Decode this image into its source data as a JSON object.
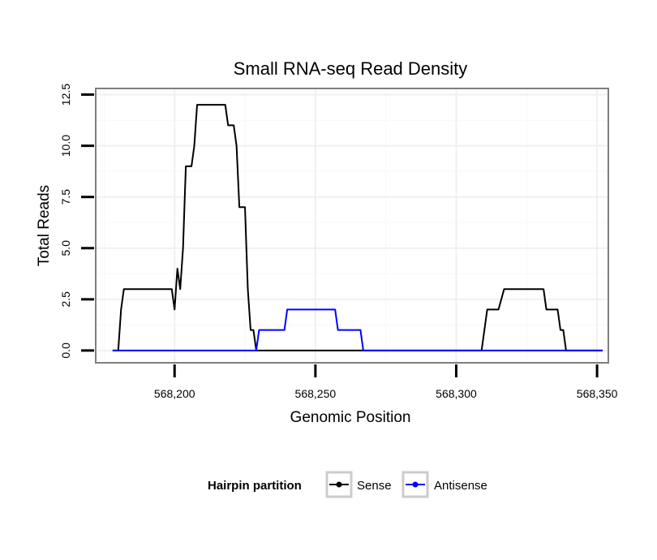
{
  "chart_data": {
    "type": "line",
    "title": "Small RNA-seq Read Density",
    "xlabel": "Genomic Position",
    "ylabel": "Total Reads",
    "xlim": [
      568172,
      568354
    ],
    "ylim": [
      -0.6,
      12.8
    ],
    "x_ticks": [
      568200,
      568250,
      568300,
      568350
    ],
    "x_tick_labels": [
      "568,200",
      "568,250",
      "568,300",
      "568,350"
    ],
    "y_ticks": [
      0,
      2.5,
      5,
      7.5,
      10,
      12.5
    ],
    "y_tick_labels": [
      "0.0",
      "2.5",
      "5.0",
      "7.5",
      "10.0",
      "12.5"
    ],
    "grid": true,
    "legend_title": "Hairpin partition",
    "legend_position": "bottom",
    "series": [
      {
        "name": "Sense",
        "color": "#000000",
        "points": [
          [
            568178,
            0
          ],
          [
            568180,
            0
          ],
          [
            568181,
            2
          ],
          [
            568182,
            3
          ],
          [
            568199,
            3
          ],
          [
            568200,
            2
          ],
          [
            568201,
            4
          ],
          [
            568202,
            3
          ],
          [
            568203,
            5
          ],
          [
            568204,
            9
          ],
          [
            568206,
            9
          ],
          [
            568207,
            10
          ],
          [
            568208,
            12
          ],
          [
            568218,
            12
          ],
          [
            568219,
            11
          ],
          [
            568221,
            11
          ],
          [
            568222,
            10
          ],
          [
            568223,
            7
          ],
          [
            568225,
            7
          ],
          [
            568226,
            3
          ],
          [
            568227,
            1
          ],
          [
            568228,
            1
          ],
          [
            568229,
            0
          ],
          [
            568309,
            0
          ],
          [
            568311,
            2
          ],
          [
            568315,
            2
          ],
          [
            568317,
            3
          ],
          [
            568331,
            3
          ],
          [
            568332,
            2
          ],
          [
            568336,
            2
          ],
          [
            568337,
            1
          ],
          [
            568338,
            1
          ],
          [
            568339,
            0
          ],
          [
            568352,
            0
          ]
        ]
      },
      {
        "name": "Antisense",
        "color": "#0000ff",
        "points": [
          [
            568178,
            0
          ],
          [
            568229,
            0
          ],
          [
            568230,
            1
          ],
          [
            568239,
            1
          ],
          [
            568240,
            2
          ],
          [
            568257,
            2
          ],
          [
            568258,
            1
          ],
          [
            568266,
            1
          ],
          [
            568267,
            0
          ],
          [
            568352,
            0
          ]
        ]
      }
    ]
  }
}
